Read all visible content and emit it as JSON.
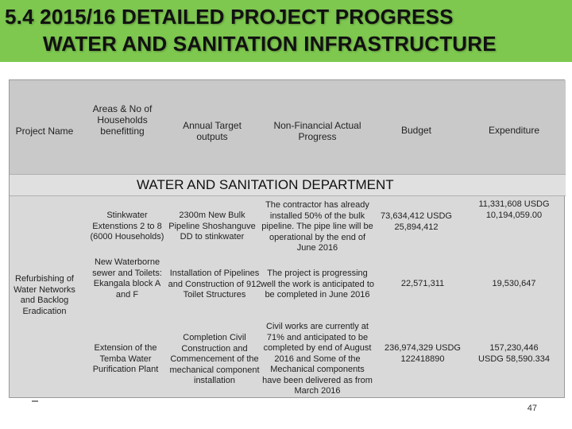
{
  "header": {
    "line1": "5.4   2015/16  DETAILED PROJECT PROGRESS",
    "line2": "WATER AND SANITATION INFRASTRUCTURE"
  },
  "columns": [
    "Project Name",
    "Areas & No of Households benefitting",
    "Annual Target outputs",
    "Non-Financial Actual Progress",
    "Budget",
    "Expenditure"
  ],
  "department": "WATER AND SANITATION DEPARTMENT",
  "project_name": "Refurbishing of Water Networks and Backlog Eradication",
  "rows": [
    {
      "area": "Stinkwater Extenstions 2 to 8 (6000 Households)",
      "target": "2300m New Bulk Pipeline Shoshanguve DD to stinkwater",
      "progress": "The contractor has already installed 50% of the bulk pipeline. The pipe line will be operational by the end of June 2016",
      "budget": "73,634,412 USDG 25,894,412",
      "expenditure": "11,331,608 USDG 10,194,059.00"
    },
    {
      "area": "New Waterborne sewer and Toilets: Ekangala block A and F",
      "target": "Installation of Pipelines and Construction of 912 Toilet Structures",
      "progress": "The project is progressing well the work is anticipated to be completed in June 2016",
      "budget": "22,571,311",
      "expenditure": "19,530,647"
    },
    {
      "area": "Extension of the Temba Water Purification Plant",
      "target": "Completion Civil Construction and Commencement of the mechanical component installation",
      "progress": "Civil works are currently at 71% and anticipated to be completed by end of August 2016 and Some of the Mechanical components have been delivered as from March 2016",
      "budget": "236,974,329 USDG 122418890",
      "expenditure": "157,230,446 USDG 58,590.334"
    }
  ],
  "page_number": "47"
}
